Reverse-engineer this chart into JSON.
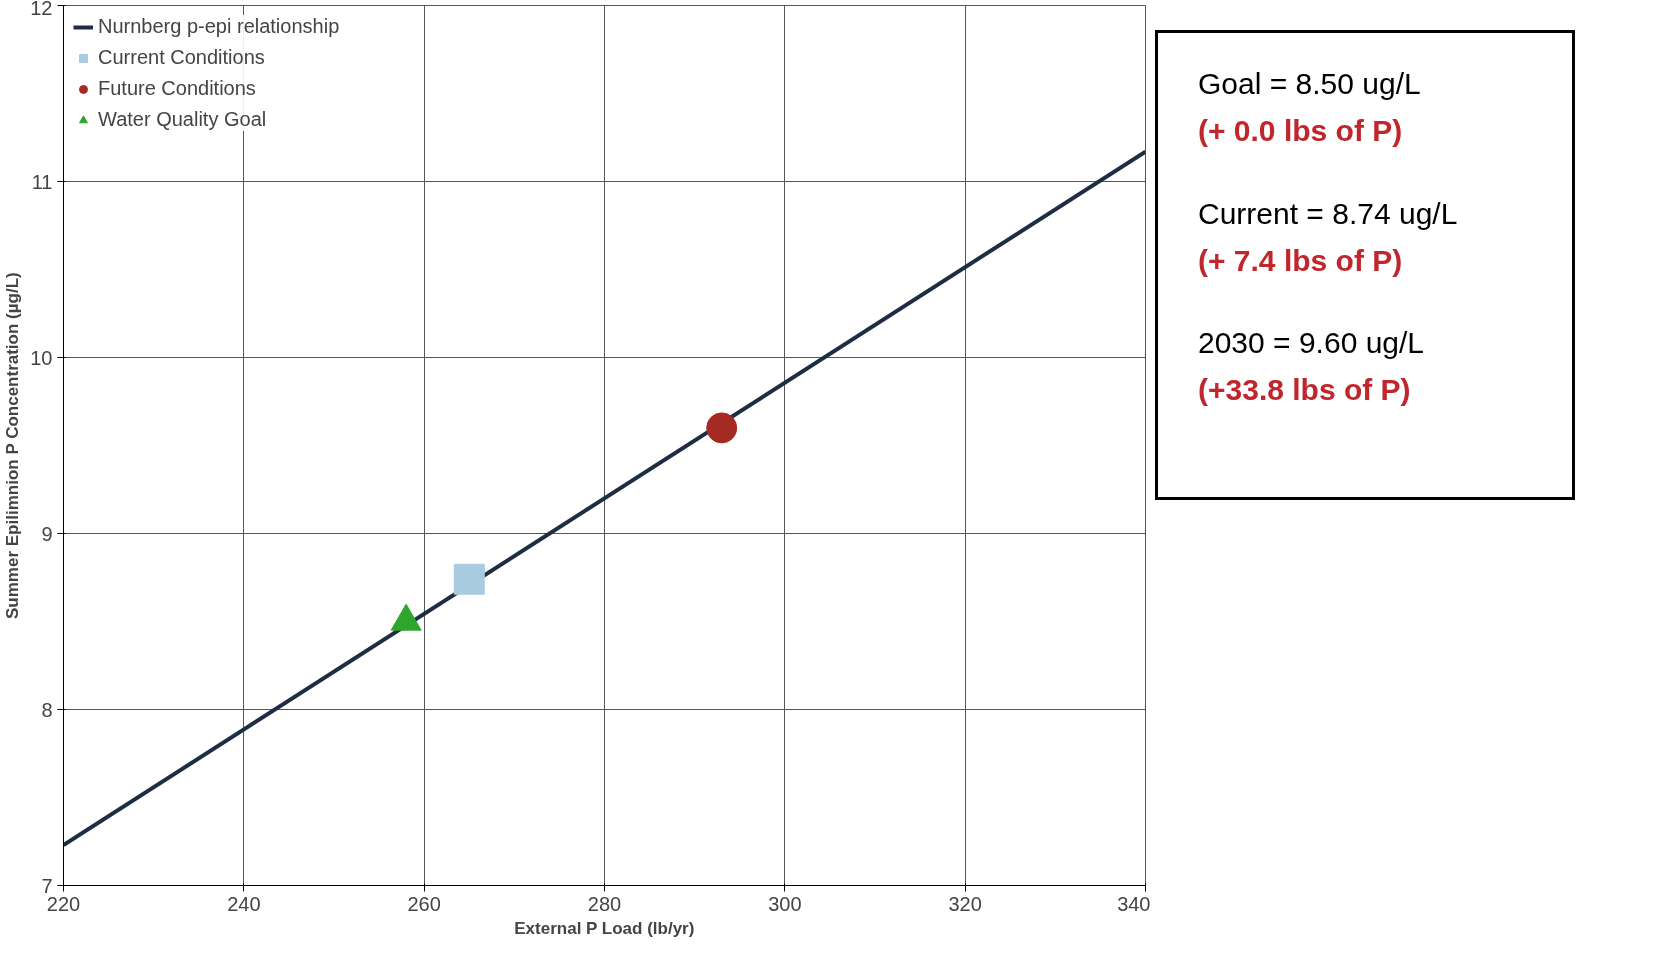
{
  "chart_data": {
    "type": "line",
    "xlabel": "External P Load (lb/yr)",
    "ylabel": "Summer Epilimnion P Concentration (µg/L)",
    "xlim": [
      220,
      340
    ],
    "xticks": [
      220,
      240,
      260,
      280,
      300,
      320,
      340
    ],
    "ylim": [
      7,
      12
    ],
    "yticks": [
      7,
      8,
      9,
      10,
      11,
      12
    ],
    "grid": true,
    "legend": "top left",
    "series": [
      {
        "name": "Nurnberg p-epi relationship",
        "color": "#1f2d44",
        "x": [
          220,
          340
        ],
        "values": [
          7.23,
          11.17
        ]
      },
      {
        "name": "Current Conditions",
        "type": "scatter",
        "marker": "square",
        "color": "#a9cbe0",
        "x": [
          265
        ],
        "values": [
          8.74
        ]
      },
      {
        "name": "Future Conditions",
        "type": "scatter",
        "marker": "circle",
        "color": "#a52a22",
        "x": [
          293
        ],
        "values": [
          9.6
        ]
      },
      {
        "name": "Water Quality Goal",
        "type": "scatter",
        "marker": "triangle",
        "color": "#2ea62e",
        "x": [
          258
        ],
        "values": [
          8.5
        ]
      }
    ],
    "annotations": [
      "Goal = 8.50 ug/L",
      "(+ 0.0 lbs of P)",
      "Current = 8.74 ug/L",
      "(+ 7.4 lbs of P)",
      "2030 = 9.60 ug/L",
      "(+33.8 lbs of P)"
    ]
  }
}
